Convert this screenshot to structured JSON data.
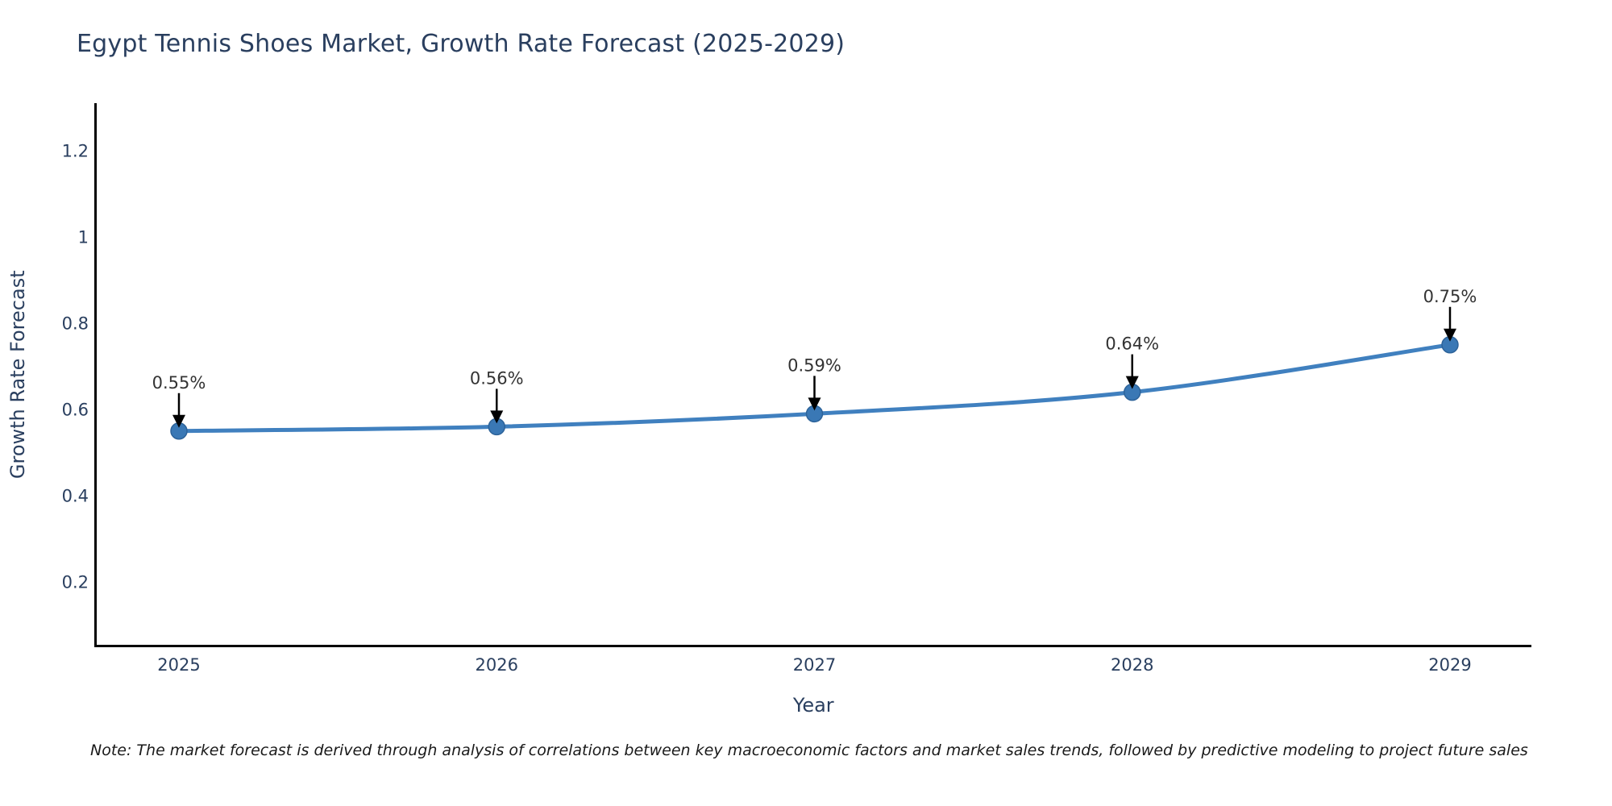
{
  "note": "Note: The market forecast is derived through analysis of correlations between key macroeconomic factors and market sales trends, followed by predictive modeling to project future sales",
  "chart_data": {
    "type": "line",
    "title": "Egypt Tennis Shoes Market, Growth Rate Forecast (2025-2029)",
    "xlabel": "Year",
    "ylabel": "Growth Rate Forecast",
    "x": [
      2025,
      2026,
      2027,
      2028,
      2029
    ],
    "values": [
      0.55,
      0.56,
      0.59,
      0.64,
      0.75
    ],
    "point_labels": [
      "0.55%",
      "0.56%",
      "0.59%",
      "0.64%",
      "0.75%"
    ],
    "xtick_labels": [
      "2025",
      "2026",
      "2027",
      "2028",
      "2029"
    ],
    "ytick_values": [
      0.2,
      0.4,
      0.6,
      0.8,
      1.0,
      1.2
    ],
    "ytick_labels": [
      "0.2",
      "0.4",
      "0.6",
      "0.8",
      "1",
      "1.2"
    ],
    "ylim": [
      0.05,
      1.31
    ],
    "grid": false,
    "legend": false,
    "line_shape": "spline",
    "colors": {
      "line": "#4080bf",
      "marker": "#3a78b5",
      "marker_edge": "#2d639a",
      "axis": "#000000",
      "tick_text": "#2a3f5f",
      "title_text": "#2a3f5f",
      "annotation_text": "#333333",
      "arrow": "#000000"
    }
  }
}
